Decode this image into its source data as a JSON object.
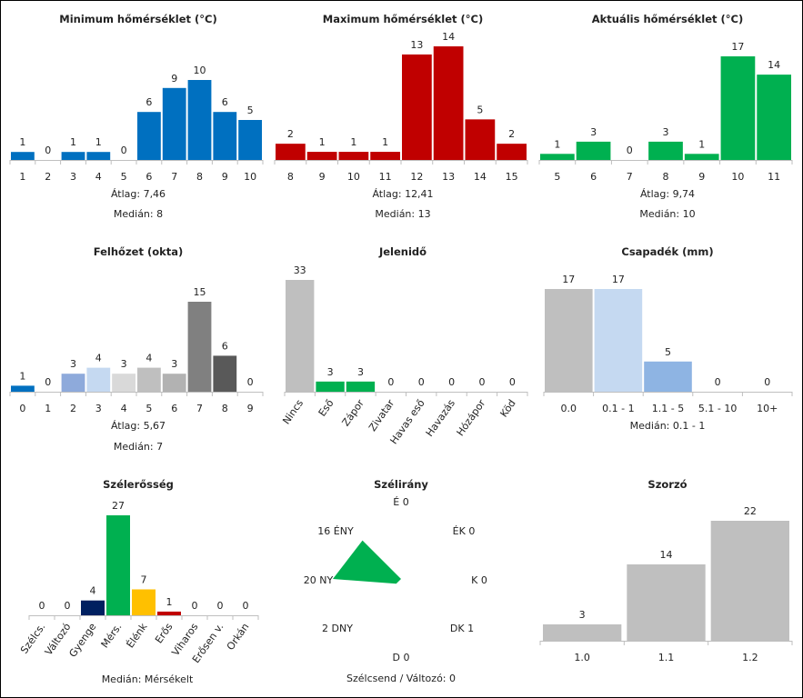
{
  "chart_data": [
    {
      "id": "min_temp",
      "type": "bar",
      "title": "Minimum hőmérséklet (°C)",
      "categories": [
        "1",
        "2",
        "3",
        "4",
        "5",
        "6",
        "7",
        "8",
        "9",
        "10"
      ],
      "values": [
        1,
        0,
        1,
        1,
        0,
        6,
        9,
        10,
        6,
        5
      ],
      "colors": [
        "#0070c0"
      ],
      "ylim": [
        0,
        10
      ],
      "stats": [
        {
          "label": "Átlag:",
          "value": "7,46"
        },
        {
          "label": "Medián:",
          "value": "8"
        }
      ]
    },
    {
      "id": "max_temp",
      "type": "bar",
      "title": "Maximum hőmérséklet (°C)",
      "categories": [
        "8",
        "9",
        "10",
        "11",
        "12",
        "13",
        "14",
        "15"
      ],
      "values": [
        2,
        1,
        1,
        1,
        13,
        14,
        5,
        2
      ],
      "colors": [
        "#c00000"
      ],
      "ylim": [
        0,
        14
      ],
      "stats": [
        {
          "label": "Átlag:",
          "value": "12,41"
        },
        {
          "label": "Medián:",
          "value": "13"
        }
      ]
    },
    {
      "id": "act_temp",
      "type": "bar",
      "title": "Aktuális hőmérséklet (°C)",
      "categories": [
        "5",
        "6",
        "7",
        "8",
        "9",
        "10",
        "11"
      ],
      "values": [
        1,
        3,
        0,
        3,
        1,
        17,
        14
      ],
      "colors": [
        "#00b050"
      ],
      "ylim": [
        0,
        17
      ],
      "stats": [
        {
          "label": "Átlag:",
          "value": "9,74"
        },
        {
          "label": "Medián:",
          "value": "10"
        }
      ]
    },
    {
      "id": "cloud",
      "type": "bar",
      "title": "Felhőzet (okta)",
      "categories": [
        "0",
        "1",
        "2",
        "3",
        "4",
        "5",
        "6",
        "7",
        "8",
        "9"
      ],
      "values": [
        1,
        0,
        3,
        4,
        3,
        4,
        3,
        15,
        6,
        0
      ],
      "colors": [
        "#0070c0",
        "#0070c0",
        "#8eaadb",
        "#c5d9f1",
        "#d9d9d9",
        "#bfbfbf",
        "#b2b2b2",
        "#808080",
        "#595959",
        "#404040"
      ],
      "ylim": [
        0,
        15
      ],
      "stats": [
        {
          "label": "Átlag:",
          "value": "5,67"
        },
        {
          "label": "Medián:",
          "value": "7"
        }
      ]
    },
    {
      "id": "weather",
      "type": "bar",
      "title": "Jelenidő",
      "categories": [
        "Nincs",
        "Eső",
        "Zápor",
        "Zivatar",
        "Havas eső",
        "Havazás",
        "Hózápor",
        "Köd"
      ],
      "values": [
        33,
        3,
        3,
        0,
        0,
        0,
        0,
        0
      ],
      "colors": [
        "#bfbfbf",
        "#00b050",
        "#00b050",
        "#bfbfbf",
        "#bfbfbf",
        "#bfbfbf",
        "#bfbfbf",
        "#bfbfbf"
      ],
      "ylim": [
        0,
        33
      ],
      "rotated_labels": true,
      "stats": []
    },
    {
      "id": "precip",
      "type": "bar",
      "title": "Csapadék (mm)",
      "categories": [
        "0.0",
        "0.1 - 1",
        "1.1 - 5",
        "5.1 - 10",
        "10+"
      ],
      "values": [
        17,
        17,
        5,
        0,
        0
      ],
      "colors": [
        "#bfbfbf",
        "#c5d9f1",
        "#8eb4e3",
        "#8eb4e3",
        "#8eb4e3"
      ],
      "ylim": [
        0,
        17
      ],
      "stats": [
        {
          "label": "Medián:",
          "value": "0.1 - 1"
        }
      ]
    },
    {
      "id": "wind_strength",
      "type": "bar",
      "title": "Szélerősség",
      "categories": [
        "Szélcs.",
        "Változó",
        "Gyenge",
        "Mérs.",
        "Élénk",
        "Erős",
        "Viharos",
        "Erősen v.",
        "Orkán"
      ],
      "values": [
        0,
        0,
        4,
        27,
        7,
        1,
        0,
        0,
        0
      ],
      "colors": [
        "#bfbfbf",
        "#bfbfbf",
        "#002060",
        "#00b050",
        "#ffc000",
        "#c00000",
        "#bfbfbf",
        "#bfbfbf",
        "#bfbfbf"
      ],
      "ylim": [
        0,
        27
      ],
      "rotated_labels": true,
      "stats": [
        {
          "label": "Medián:",
          "value": "Mérsékelt"
        }
      ]
    },
    {
      "id": "wind_dir",
      "type": "radar",
      "title": "Szélirány",
      "directions": [
        {
          "label": "É",
          "value": 0
        },
        {
          "label": "ÉK",
          "value": 0
        },
        {
          "label": "K",
          "value": 0
        },
        {
          "label": "DK",
          "value": 1
        },
        {
          "label": "D",
          "value": 0
        },
        {
          "label": "DNY",
          "value": 2
        },
        {
          "label": "NY",
          "value": 20
        },
        {
          "label": "ÉNY",
          "value": 16
        }
      ],
      "max": 20,
      "color": "#00b050",
      "footer": "Szélcsend / Változó: 0"
    },
    {
      "id": "factor",
      "type": "bar",
      "title": "Szorzó",
      "categories": [
        "1.0",
        "1.1",
        "1.2"
      ],
      "values": [
        3,
        14,
        22
      ],
      "colors": [
        "#bfbfbf"
      ],
      "ylim": [
        0,
        22
      ],
      "stats": []
    }
  ]
}
